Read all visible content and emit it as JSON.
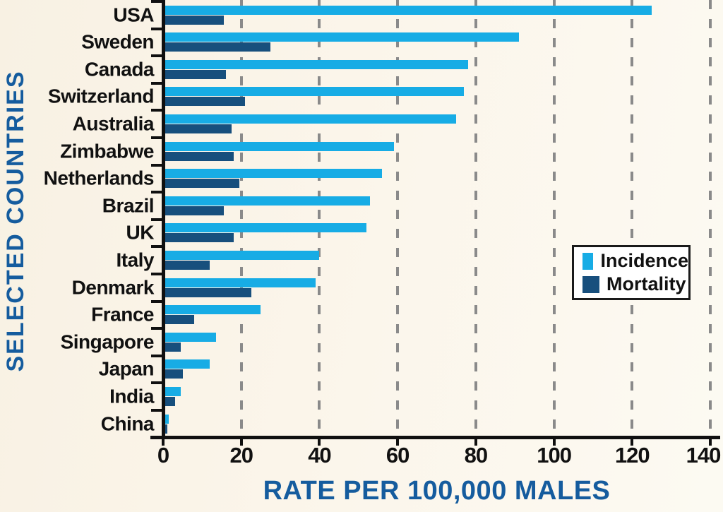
{
  "chart_data": {
    "type": "bar",
    "orientation": "horizontal",
    "title": "",
    "xlabel": "RATE PER 100,000 MALES",
    "ylabel": "SELECTED COUNTRIES",
    "xlim": [
      0,
      140
    ],
    "xticks": [
      0,
      20,
      40,
      60,
      80,
      100,
      120,
      140
    ],
    "xtick_labels": [
      "0",
      "20",
      "40",
      "60",
      "80",
      "100",
      "120",
      "140"
    ],
    "grid": "vertical dashed",
    "legend_position": "middle-right",
    "categories": [
      "USA",
      "Sweden",
      "Canada",
      "Switzerland",
      "Australia",
      "Zimbabwe",
      "Netherlands",
      "Brazil",
      "UK",
      "Italy",
      "Denmark",
      "France",
      "Singapore",
      "Japan",
      "India",
      "China"
    ],
    "series": [
      {
        "name": "Incidence",
        "color": "#17ACE5",
        "values": [
          125,
          91,
          78,
          77,
          75,
          59,
          56,
          53,
          52,
          40,
          39,
          25,
          13.5,
          12,
          4.5,
          1.5
        ]
      },
      {
        "name": "Mortality",
        "color": "#174F7D",
        "values": [
          15.5,
          27.5,
          16,
          21,
          17.5,
          18,
          19.5,
          15.5,
          18,
          12,
          22.5,
          8,
          4.5,
          5,
          3,
          1
        ]
      }
    ]
  },
  "colors": {
    "incidence": "#17ACE5",
    "mortality": "#174F7D",
    "axis_title_blue": "#155C9E",
    "background_cream": "#FBF5EA",
    "gridline_gray": "#8A8A8A",
    "axis_black": "#101010"
  }
}
